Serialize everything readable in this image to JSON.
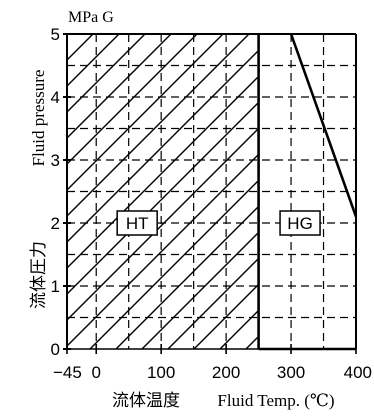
{
  "chart_data": {
    "type": "area",
    "y_unit": "MPa G",
    "ylabel_en": "Fluid pressure",
    "ylabel_jp": "流体圧力",
    "xlabel_jp": "流体温度",
    "xlabel_en": "Fluid Temp. (℃)",
    "xlim": [
      -45,
      400
    ],
    "ylim": [
      0,
      5
    ],
    "x_ticks": [
      -45,
      0,
      100,
      200,
      300,
      400
    ],
    "y_ticks": [
      0,
      1,
      2,
      3,
      4,
      5
    ],
    "x_tick_labels": [
      "−45",
      "0",
      "100",
      "200",
      "300",
      "400"
    ],
    "y_tick_labels": [
      "0",
      "1",
      "2",
      "3",
      "4",
      "5"
    ],
    "grid": "dashed",
    "regions": [
      {
        "name": "HT",
        "pattern": "hatched",
        "polygon": [
          [
            -45,
            0
          ],
          [
            250,
            0
          ],
          [
            250,
            5
          ],
          [
            -45,
            5
          ]
        ]
      },
      {
        "name": "HG",
        "pattern": "none",
        "polygon": [
          [
            250,
            0
          ],
          [
            400,
            0
          ],
          [
            400,
            2.1
          ],
          [
            300,
            5
          ],
          [
            250,
            5
          ]
        ]
      }
    ]
  }
}
